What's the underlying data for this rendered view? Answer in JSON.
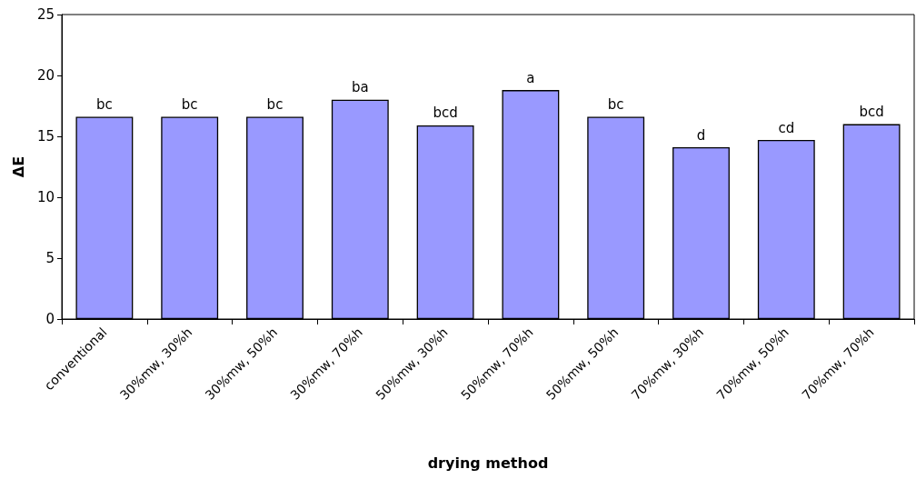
{
  "chart_data": {
    "type": "bar",
    "xlabel": "drying method",
    "ylabel": "ΔE",
    "categories": [
      "conventional",
      "30%mw, 30%h",
      "30%mw, 50%h",
      "30%mw, 70%h",
      "50%mw, 30%h",
      "50%mw, 70%h",
      "50%mw, 50%h",
      "70%mw, 30%h",
      "70%mw, 50%h",
      "70%mw, 70%h"
    ],
    "values": [
      16.6,
      16.6,
      16.6,
      18.0,
      15.9,
      18.8,
      16.6,
      14.1,
      14.7,
      16.0
    ],
    "color": "#9999ff",
    "ylim": [
      0,
      25
    ],
    "yticks": [
      0,
      5,
      10,
      15,
      20,
      25
    ],
    "grid": false,
    "annotations": [
      {
        "text": "bc",
        "x": "conventional",
        "y": 16.6
      },
      {
        "text": "bc",
        "x": "30%mw, 30%h",
        "y": 16.6
      },
      {
        "text": "bc",
        "x": "30%mw, 50%h",
        "y": 16.6
      },
      {
        "text": "ba",
        "x": "30%mw, 70%h",
        "y": 18.0
      },
      {
        "text": "bcd",
        "x": "50%mw, 30%h",
        "y": 15.9
      },
      {
        "text": "a",
        "x": "50%mw, 70%h",
        "y": 18.8
      },
      {
        "text": "bc",
        "x": "50%mw, 50%h",
        "y": 16.6
      },
      {
        "text": "d",
        "x": "70%mw, 30%h",
        "y": 14.1
      },
      {
        "text": "cd",
        "x": "70%mw, 50%h",
        "y": 14.7
      },
      {
        "text": "bcd",
        "x": "70%mw, 70%h",
        "y": 16.0
      }
    ]
  }
}
